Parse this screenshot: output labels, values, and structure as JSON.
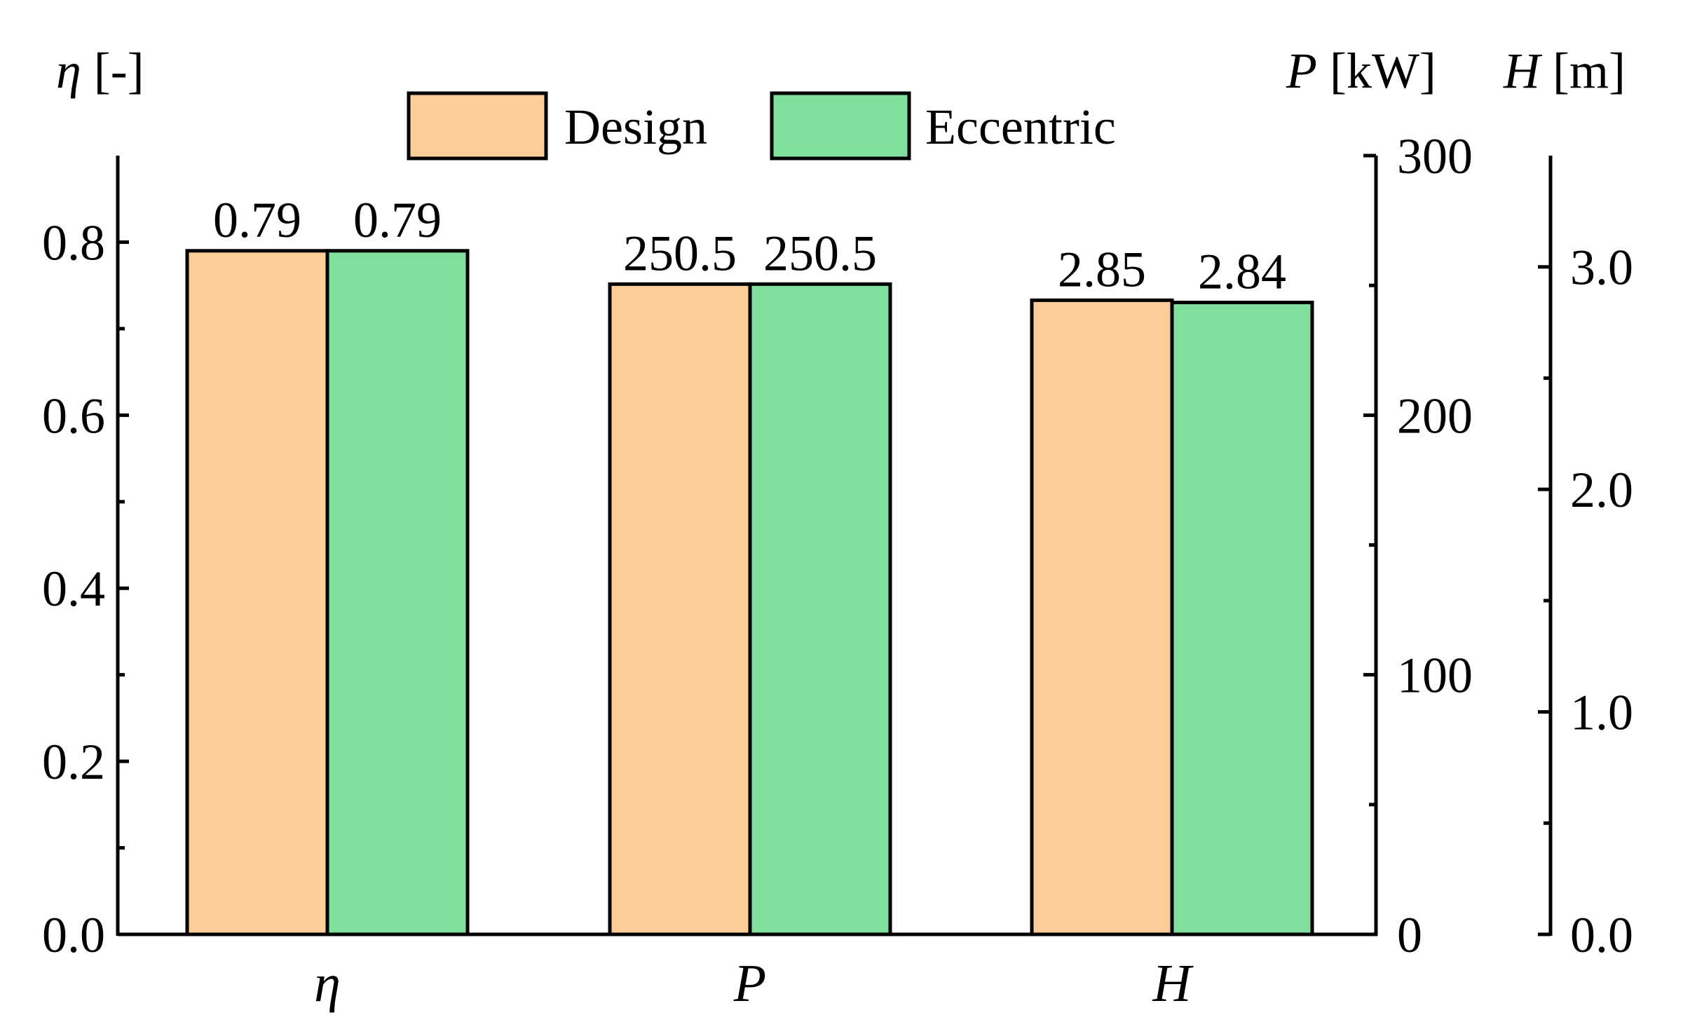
{
  "chart_data": {
    "type": "bar",
    "categories": [
      "η",
      "P",
      "H"
    ],
    "series": [
      {
        "name": "Design",
        "color": "#fdcd98",
        "values": [
          0.79,
          250.5,
          2.85
        ],
        "labels": [
          "0.79",
          "250.5",
          "2.85"
        ]
      },
      {
        "name": "Eccentric",
        "color": "#80df9c",
        "values": [
          0.79,
          250.5,
          2.84
        ],
        "labels": [
          "0.79",
          "250.5",
          "2.84"
        ]
      }
    ],
    "axes": {
      "eta": {
        "symbol": "η",
        "unit": "[-]",
        "range": [
          0,
          0.9
        ],
        "ticks": [
          0.0,
          0.2,
          0.4,
          0.6,
          0.8
        ],
        "tick_labels": [
          "0.0",
          "0.2",
          "0.4",
          "0.6",
          "0.8"
        ],
        "minor_ticks": [
          0.1,
          0.3,
          0.5,
          0.7
        ]
      },
      "P": {
        "symbol": "P",
        "unit": "[kW]",
        "range": [
          0,
          300
        ],
        "ticks": [
          0,
          100,
          200,
          300
        ],
        "tick_labels": [
          "0",
          "100",
          "200",
          "300"
        ],
        "minor_ticks": [
          50,
          150,
          250
        ]
      },
      "H": {
        "symbol": "H",
        "unit": "[m]",
        "range": [
          0,
          3.5
        ],
        "ticks": [
          0.0,
          1.0,
          2.0,
          3.0
        ],
        "tick_labels": [
          "0.0",
          "1.0",
          "2.0",
          "3.0"
        ],
        "minor_ticks": [
          0.5,
          1.5,
          2.5
        ]
      }
    },
    "legend": {
      "position": "top-center"
    },
    "colors": {
      "design": "#fdcd98",
      "eccentric": "#80df9c",
      "axis": "#000000"
    }
  }
}
